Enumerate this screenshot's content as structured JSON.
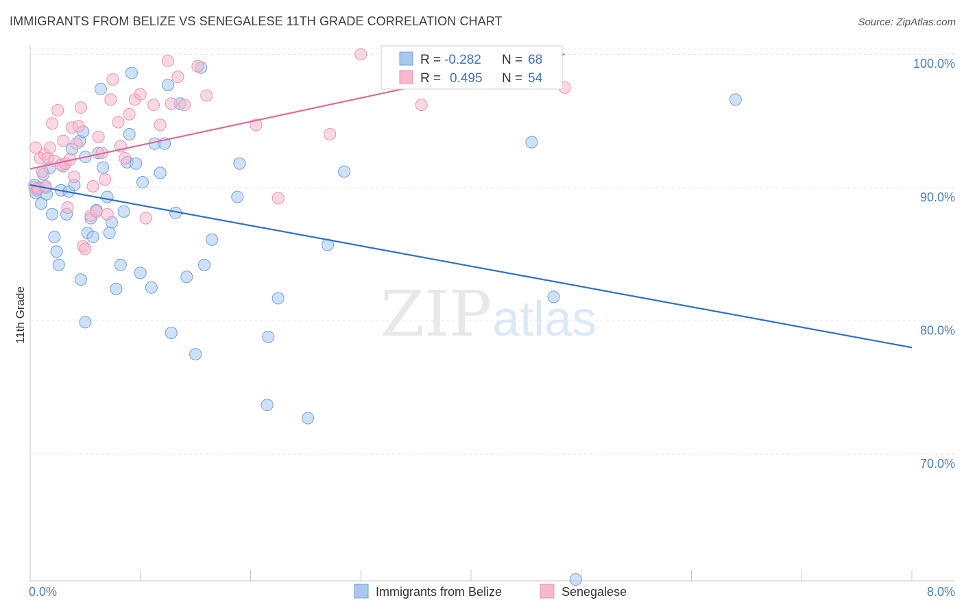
{
  "header": {
    "title": "IMMIGRANTS FROM BELIZE VS SENEGALESE 11TH GRADE CORRELATION CHART",
    "source": "Source: ZipAtlas.com"
  },
  "watermark": {
    "zip": "ZIP",
    "atlas": "atlas"
  },
  "stats_legend": {
    "rows": [
      {
        "r_label": "R =",
        "r_value": "-0.282",
        "n_label": "N =",
        "n_value": "68",
        "color": "#a8c8f0"
      },
      {
        "r_label": "R =",
        "r_value": "0.495",
        "n_label": "N =",
        "n_value": "54",
        "color": "#f6b8cc"
      }
    ]
  },
  "bottom_legend": [
    {
      "label": "Immigrants from Belize",
      "color": "#a8c8f0"
    },
    {
      "label": "Senegalese",
      "color": "#f6b8cc"
    }
  ],
  "chart_data": {
    "type": "scatter",
    "title": "IMMIGRANTS FROM BELIZE VS SENEGALESE 11TH GRADE CORRELATION CHART",
    "xlabel": "",
    "ylabel": "11th Grade",
    "xlim": [
      0,
      8
    ],
    "ylim": [
      60.5,
      101.5
    ],
    "x_tick_labels": [
      {
        "value": 0,
        "label": "0.0%"
      },
      {
        "value": 8,
        "label": "8.0%"
      }
    ],
    "y_tick_labels": [
      {
        "value": 100,
        "label": "100.0%"
      },
      {
        "value": 90,
        "label": "90.0%"
      },
      {
        "value": 80,
        "label": "80.0%"
      },
      {
        "value": 70,
        "label": "70.0%"
      }
    ],
    "series": [
      {
        "name": "Immigrants from Belize",
        "color": "#a8c8f0",
        "stroke": "#6f9fe0",
        "trend": {
          "x": [
            0.0,
            8.0
          ],
          "y": [
            90.2,
            78.0
          ],
          "color": "#2f6fd0"
        },
        "points": [
          [
            0.04,
            90.2
          ],
          [
            0.06,
            89.8
          ],
          [
            0.08,
            90.0
          ],
          [
            0.1,
            88.8
          ],
          [
            0.12,
            91.0
          ],
          [
            0.14,
            90.0
          ],
          [
            0.15,
            89.5
          ],
          [
            0.18,
            91.5
          ],
          [
            0.2,
            88.0
          ],
          [
            0.22,
            86.3
          ],
          [
            0.24,
            85.2
          ],
          [
            0.28,
            89.8
          ],
          [
            0.3,
            91.6
          ],
          [
            0.33,
            88.0
          ],
          [
            0.35,
            89.7
          ],
          [
            0.38,
            92.9
          ],
          [
            0.4,
            90.2
          ],
          [
            0.45,
            93.5
          ],
          [
            0.46,
            83.1
          ],
          [
            0.48,
            94.2
          ],
          [
            0.5,
            92.3
          ],
          [
            0.52,
            86.6
          ],
          [
            0.55,
            87.7
          ],
          [
            0.57,
            86.3
          ],
          [
            0.6,
            88.3
          ],
          [
            0.62,
            92.6
          ],
          [
            0.64,
            97.4
          ],
          [
            0.66,
            91.5
          ],
          [
            0.7,
            89.3
          ],
          [
            0.72,
            86.6
          ],
          [
            0.74,
            87.4
          ],
          [
            0.78,
            82.4
          ],
          [
            0.82,
            84.2
          ],
          [
            0.85,
            88.2
          ],
          [
            0.88,
            91.9
          ],
          [
            0.9,
            94.0
          ],
          [
            0.92,
            98.6
          ],
          [
            0.96,
            91.8
          ],
          [
            1.0,
            83.6
          ],
          [
            1.02,
            90.4
          ],
          [
            1.1,
            82.5
          ],
          [
            1.13,
            93.3
          ],
          [
            1.18,
            91.1
          ],
          [
            1.22,
            93.3
          ],
          [
            1.25,
            97.7
          ],
          [
            1.28,
            79.1
          ],
          [
            1.32,
            88.1
          ],
          [
            1.36,
            96.3
          ],
          [
            1.42,
            83.3
          ],
          [
            1.5,
            77.5
          ],
          [
            1.55,
            99.0
          ],
          [
            1.58,
            84.2
          ],
          [
            1.65,
            86.1
          ],
          [
            1.88,
            89.3
          ],
          [
            1.9,
            91.8
          ],
          [
            2.15,
            73.7
          ],
          [
            2.16,
            78.8
          ],
          [
            2.25,
            81.7
          ],
          [
            2.52,
            72.7
          ],
          [
            2.7,
            85.7
          ],
          [
            2.85,
            91.2
          ],
          [
            4.55,
            93.4
          ],
          [
            4.75,
            81.8
          ],
          [
            4.95,
            60.6
          ],
          [
            6.4,
            96.6
          ],
          [
            0.05,
            89.6
          ],
          [
            0.26,
            84.2
          ],
          [
            0.5,
            79.9
          ]
        ]
      },
      {
        "name": "Senegalese",
        "color": "#f6b8cc",
        "stroke": "#ec8fb0",
        "trend": {
          "x": [
            0.0,
            4.85
          ],
          "y": [
            91.4,
            100.0
          ],
          "color": "#e06a97"
        },
        "points": [
          [
            0.04,
            90.0
          ],
          [
            0.05,
            93.0
          ],
          [
            0.07,
            89.9
          ],
          [
            0.09,
            92.2
          ],
          [
            0.11,
            91.2
          ],
          [
            0.13,
            92.5
          ],
          [
            0.14,
            90.1
          ],
          [
            0.16,
            92.2
          ],
          [
            0.18,
            93.0
          ],
          [
            0.2,
            94.8
          ],
          [
            0.22,
            92.0
          ],
          [
            0.25,
            95.8
          ],
          [
            0.28,
            91.7
          ],
          [
            0.3,
            93.5
          ],
          [
            0.32,
            91.8
          ],
          [
            0.34,
            88.5
          ],
          [
            0.36,
            92.1
          ],
          [
            0.38,
            94.5
          ],
          [
            0.4,
            90.8
          ],
          [
            0.42,
            93.3
          ],
          [
            0.44,
            94.6
          ],
          [
            0.46,
            96.0
          ],
          [
            0.48,
            85.6
          ],
          [
            0.5,
            85.4
          ],
          [
            0.55,
            87.9
          ],
          [
            0.57,
            90.1
          ],
          [
            0.6,
            88.2
          ],
          [
            0.62,
            93.8
          ],
          [
            0.65,
            92.6
          ],
          [
            0.68,
            90.6
          ],
          [
            0.7,
            88.0
          ],
          [
            0.73,
            96.6
          ],
          [
            0.75,
            98.1
          ],
          [
            0.8,
            94.9
          ],
          [
            0.82,
            93.1
          ],
          [
            0.86,
            92.2
          ],
          [
            0.9,
            95.5
          ],
          [
            0.95,
            96.6
          ],
          [
            1.0,
            97.0
          ],
          [
            1.05,
            87.7
          ],
          [
            1.12,
            96.2
          ],
          [
            1.18,
            94.7
          ],
          [
            1.25,
            99.5
          ],
          [
            1.28,
            96.3
          ],
          [
            1.34,
            98.3
          ],
          [
            1.4,
            96.2
          ],
          [
            1.52,
            99.1
          ],
          [
            1.6,
            96.9
          ],
          [
            2.05,
            94.7
          ],
          [
            2.25,
            89.2
          ],
          [
            2.72,
            94.0
          ],
          [
            3.0,
            100.0
          ],
          [
            3.55,
            96.2
          ],
          [
            4.85,
            97.5
          ]
        ]
      }
    ]
  }
}
